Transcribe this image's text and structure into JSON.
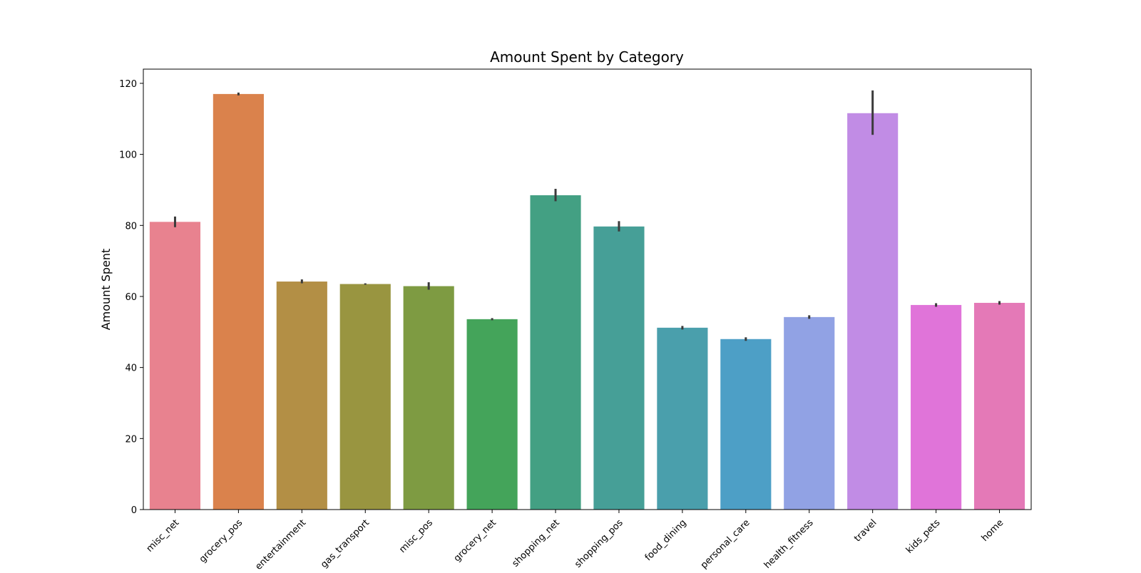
{
  "chart_data": {
    "type": "bar",
    "title": "Amount Spent by Category",
    "xlabel": "",
    "ylabel": "Amount Spent",
    "ylim": [
      0,
      124
    ],
    "yticks": [
      0,
      20,
      40,
      60,
      80,
      100,
      120
    ],
    "grid": false,
    "legend": "none",
    "categories": [
      "misc_net",
      "grocery_pos",
      "entertainment",
      "gas_transport",
      "misc_pos",
      "grocery_net",
      "shopping_net",
      "shopping_pos",
      "food_dining",
      "personal_care",
      "health_fitness",
      "travel",
      "kids_pets",
      "home"
    ],
    "values": [
      81.0,
      117.0,
      64.2,
      63.5,
      62.9,
      53.6,
      88.5,
      79.7,
      51.2,
      48.0,
      54.2,
      111.6,
      57.6,
      58.2
    ],
    "error_low": [
      79.5,
      116.6,
      63.7,
      63.3,
      61.9,
      53.3,
      86.8,
      78.3,
      50.7,
      47.5,
      53.7,
      105.5,
      57.1,
      57.7
    ],
    "error_high": [
      82.5,
      117.4,
      64.8,
      63.7,
      64.0,
      53.9,
      90.3,
      81.2,
      51.7,
      48.5,
      54.7,
      118.0,
      58.1,
      58.7
    ],
    "colors": [
      "#e8828f",
      "#da824c",
      "#b38f45",
      "#999540",
      "#7e9b42",
      "#44a45a",
      "#43a083",
      "#469f97",
      "#4a9fac",
      "#4d9fc6",
      "#91a2e4",
      "#c18ce5",
      "#e074d9",
      "#e479b7"
    ]
  }
}
